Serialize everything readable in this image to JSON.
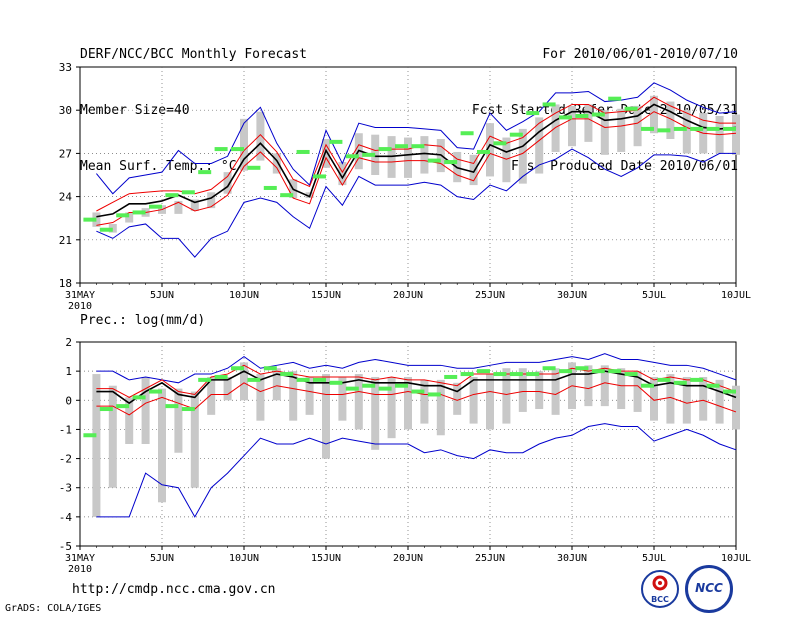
{
  "header": {
    "title": "DERF/NCC/BCC Monthly Forecast",
    "member_size": "Member Size=40",
    "variable1": "Mean Surf. Temp.: °C",
    "forecast_period": "For 2010/06/01-2010/07/10",
    "start_date": "Fcst Started Refer Date 2010/05/31",
    "produced_date": "Fcst Produced Date 2010/06/01"
  },
  "footer": {
    "url": "http://cmdp.ncc.cma.gov.cn",
    "credit": "GrADS: COLA/IGES",
    "logo1_label": "BCC",
    "logo2_label": "NCC"
  },
  "colors": {
    "envelope": "#0000cc",
    "spread": "#ee0000",
    "mean": "#000000",
    "box": "#c8c8c8",
    "clim": "#55ee55"
  },
  "chart_data": [
    {
      "type": "line",
      "title": "Mean Surf. Temp.: °C",
      "xlabel": "",
      "ylabel": "",
      "x_ticks": [
        "31MAY 2010",
        "5JUN",
        "10JUN",
        "15JUN",
        "20JUN",
        "25JUN",
        "30JUN",
        "5JUL",
        "10JUL"
      ],
      "ylim": [
        18,
        33
      ],
      "y_ticks": [
        18,
        21,
        24,
        27,
        30,
        33
      ],
      "days": [
        1,
        2,
        3,
        4,
        5,
        6,
        7,
        8,
        9,
        10,
        11,
        12,
        13,
        14,
        15,
        16,
        17,
        18,
        19,
        20,
        21,
        22,
        23,
        24,
        25,
        26,
        27,
        28,
        29,
        30,
        31,
        32,
        33,
        34,
        35,
        36,
        37,
        38,
        39,
        40
      ],
      "series": [
        {
          "name": "max",
          "values": [
            25.6,
            24.2,
            25.3,
            25.5,
            25.7,
            27.2,
            26.3,
            26.3,
            26.8,
            29.1,
            30.2,
            27.7,
            25.9,
            24.8,
            28.6,
            26.3,
            29.1,
            28.8,
            28.8,
            28.8,
            28.7,
            28.6,
            27.4,
            27.3,
            29.8,
            28.6,
            29.2,
            29.9,
            31.2,
            31.2,
            31.3,
            30.6,
            30.7,
            30.9,
            31.9,
            31.4,
            30.7,
            30.2,
            29.8,
            29.9
          ]
        },
        {
          "name": "upper",
          "values": [
            23.0,
            23.6,
            24.2,
            24.3,
            24.4,
            24.4,
            24.2,
            24.5,
            25.4,
            27.2,
            28.3,
            27.1,
            25.2,
            24.7,
            27.6,
            25.7,
            27.6,
            27.2,
            27.3,
            27.3,
            27.6,
            27.5,
            26.6,
            26.3,
            28.2,
            27.7,
            28.1,
            29.1,
            29.8,
            30.4,
            30.4,
            29.8,
            29.9,
            30.0,
            30.9,
            30.3,
            29.8,
            29.3,
            29.1,
            29.1
          ]
        },
        {
          "name": "mean",
          "values": [
            22.6,
            22.8,
            23.5,
            23.5,
            23.7,
            24.1,
            23.6,
            23.9,
            24.7,
            26.6,
            27.7,
            26.5,
            24.5,
            24.0,
            27.2,
            25.3,
            27.2,
            26.8,
            26.8,
            26.9,
            27.0,
            26.9,
            26.0,
            25.7,
            27.6,
            27.1,
            27.5,
            28.5,
            29.3,
            29.9,
            29.9,
            29.3,
            29.4,
            29.6,
            30.4,
            29.9,
            29.3,
            28.8,
            28.7,
            28.8
          ]
        },
        {
          "name": "lower",
          "values": [
            22.0,
            22.2,
            22.9,
            22.9,
            23.1,
            23.6,
            23.0,
            23.3,
            24.1,
            26.1,
            27.1,
            26.0,
            23.9,
            23.5,
            26.7,
            24.8,
            26.7,
            26.4,
            26.4,
            26.5,
            26.5,
            26.3,
            25.5,
            25.1,
            27.0,
            26.6,
            27.0,
            27.9,
            28.8,
            29.4,
            29.4,
            28.8,
            28.9,
            29.1,
            29.9,
            29.4,
            28.8,
            28.4,
            28.3,
            28.4
          ]
        },
        {
          "name": "min",
          "values": [
            21.6,
            21.1,
            21.9,
            22.1,
            21.1,
            21.1,
            19.8,
            21.1,
            21.6,
            23.6,
            23.9,
            23.6,
            22.6,
            21.8,
            24.7,
            23.4,
            25.4,
            24.8,
            24.8,
            24.8,
            25.0,
            24.8,
            24.0,
            23.8,
            24.8,
            24.4,
            25.4,
            26.2,
            26.6,
            27.3,
            26.7,
            25.9,
            25.4,
            26.0,
            26.9,
            26.9,
            26.8,
            26.4,
            27.0,
            27.0
          ]
        },
        {
          "name": "box_top",
          "values": [
            22.9,
            22.1,
            22.9,
            23.2,
            23.4,
            23.7,
            23.8,
            24.3,
            25.7,
            29.4,
            29.9,
            27.0,
            25.2,
            24.3,
            28.0,
            26.4,
            28.4,
            28.3,
            28.2,
            28.1,
            28.2,
            28.0,
            27.1,
            26.9,
            29.1,
            28.1,
            28.7,
            29.5,
            30.4,
            30.3,
            30.4,
            30.0,
            30.1,
            30.3,
            31.0,
            30.6,
            30.0,
            29.8,
            29.6,
            29.7
          ]
        },
        {
          "name": "box_bottom",
          "values": [
            21.9,
            21.5,
            22.2,
            22.6,
            22.8,
            22.8,
            23.0,
            23.2,
            24.2,
            25.8,
            26.5,
            25.6,
            23.9,
            23.9,
            26.0,
            24.8,
            25.9,
            25.5,
            25.3,
            25.3,
            25.6,
            25.7,
            25.0,
            24.8,
            25.4,
            25.0,
            24.9,
            25.6,
            27.1,
            27.5,
            27.8,
            26.9,
            27.1,
            27.5,
            28.4,
            28.0,
            27.0,
            27.0,
            27.0,
            26.9
          ]
        },
        {
          "name": "climatology",
          "values": [
            22.4,
            21.7,
            22.7,
            22.9,
            23.3,
            24.1,
            24.3,
            25.7,
            27.3,
            27.3,
            26.0,
            24.6,
            24.1,
            27.1,
            25.4,
            27.8,
            26.8,
            26.9,
            27.3,
            27.5,
            27.5,
            26.5,
            26.4,
            28.4,
            27.1,
            27.7,
            28.3,
            29.8,
            30.4,
            29.5,
            29.6,
            29.7,
            30.8,
            30.1,
            28.7,
            28.6,
            28.7,
            28.7,
            28.7,
            28.7
          ]
        }
      ]
    },
    {
      "type": "line",
      "title": "Prec.: log(mm/d)",
      "xlabel": "",
      "ylabel": "",
      "x_ticks": [
        "31MAY 2010",
        "5JUN",
        "10JUN",
        "15JUN",
        "20JUN",
        "25JUN",
        "30JUN",
        "5JUL",
        "10JUL"
      ],
      "ylim": [
        -5,
        2
      ],
      "y_ticks": [
        -5,
        -4,
        -3,
        -2,
        -1,
        0,
        1,
        2
      ],
      "days": [
        1,
        2,
        3,
        4,
        5,
        6,
        7,
        8,
        9,
        10,
        11,
        12,
        13,
        14,
        15,
        16,
        17,
        18,
        19,
        20,
        21,
        22,
        23,
        24,
        25,
        26,
        27,
        28,
        29,
        30,
        31,
        32,
        33,
        34,
        35,
        36,
        37,
        38,
        39,
        40
      ],
      "series": [
        {
          "name": "max",
          "values": [
            1.0,
            1.0,
            0.7,
            0.8,
            0.7,
            0.6,
            0.9,
            0.9,
            1.1,
            1.5,
            1.1,
            1.2,
            1.3,
            1.1,
            1.2,
            1.1,
            1.3,
            1.4,
            1.3,
            1.2,
            1.2,
            1.2,
            1.1,
            1.1,
            1.2,
            1.3,
            1.3,
            1.3,
            1.4,
            1.5,
            1.4,
            1.6,
            1.4,
            1.4,
            1.3,
            1.2,
            1.2,
            1.1,
            0.9,
            0.7
          ]
        },
        {
          "name": "upper",
          "values": [
            0.4,
            0.4,
            0.1,
            0.4,
            0.7,
            0.3,
            0.2,
            0.8,
            0.9,
            1.2,
            0.9,
            1.0,
            0.9,
            0.8,
            0.8,
            0.8,
            0.8,
            0.7,
            0.8,
            0.7,
            0.7,
            0.6,
            0.5,
            0.9,
            0.9,
            0.9,
            0.9,
            0.9,
            0.9,
            1.1,
            1.0,
            1.1,
            1.0,
            1.0,
            0.7,
            0.8,
            0.7,
            0.7,
            0.5,
            0.3
          ]
        },
        {
          "name": "mean",
          "values": [
            0.3,
            0.3,
            -0.1,
            0.3,
            0.6,
            0.2,
            0.1,
            0.7,
            0.7,
            1.0,
            0.7,
            0.9,
            0.8,
            0.6,
            0.6,
            0.6,
            0.7,
            0.6,
            0.6,
            0.6,
            0.5,
            0.5,
            0.3,
            0.7,
            0.7,
            0.7,
            0.7,
            0.7,
            0.7,
            0.9,
            0.9,
            1.0,
            0.9,
            0.8,
            0.5,
            0.6,
            0.5,
            0.5,
            0.3,
            0.1
          ]
        },
        {
          "name": "lower",
          "values": [
            -0.2,
            -0.2,
            -0.5,
            -0.1,
            0.1,
            -0.1,
            -0.3,
            0.2,
            0.2,
            0.6,
            0.3,
            0.5,
            0.4,
            0.3,
            0.2,
            0.2,
            0.3,
            0.2,
            0.2,
            0.3,
            0.2,
            0.2,
            0.0,
            0.2,
            0.3,
            0.2,
            0.3,
            0.3,
            0.2,
            0.5,
            0.4,
            0.6,
            0.5,
            0.5,
            0.0,
            0.1,
            -0.1,
            0.0,
            -0.2,
            -0.4
          ]
        },
        {
          "name": "min",
          "values": [
            -4.0,
            -4.0,
            -4.0,
            -2.5,
            -2.9,
            -3.0,
            -4.0,
            -3.0,
            -2.5,
            -1.9,
            -1.3,
            -1.5,
            -1.5,
            -1.3,
            -1.5,
            -1.3,
            -1.4,
            -1.5,
            -1.5,
            -1.5,
            -1.8,
            -1.7,
            -1.9,
            -2.0,
            -1.7,
            -1.8,
            -1.8,
            -1.5,
            -1.3,
            -1.2,
            -0.9,
            -0.8,
            -0.9,
            -0.9,
            -1.4,
            -1.2,
            -1.0,
            -1.2,
            -1.5,
            -1.7
          ]
        },
        {
          "name": "box_top",
          "values": [
            0.9,
            0.5,
            0.1,
            0.8,
            0.4,
            0.4,
            0.3,
            0.8,
            0.8,
            1.3,
            0.9,
            1.1,
            1.0,
            0.8,
            0.9,
            0.8,
            0.9,
            0.8,
            0.8,
            0.8,
            0.7,
            0.7,
            0.6,
            0.8,
            0.9,
            1.1,
            1.1,
            1.0,
            1.1,
            1.3,
            1.2,
            1.2,
            1.1,
            1.0,
            0.8,
            0.9,
            0.8,
            0.8,
            0.7,
            0.5
          ]
        },
        {
          "name": "box_bottom",
          "values": [
            -4.0,
            -3.0,
            -1.5,
            -1.5,
            -3.5,
            -1.8,
            -3.0,
            -0.5,
            0.0,
            0.0,
            -0.7,
            0.0,
            -0.7,
            -0.5,
            -2.0,
            -0.7,
            -1.0,
            -1.7,
            -1.3,
            -1.0,
            -0.8,
            -1.2,
            -0.5,
            -0.8,
            -1.0,
            -0.8,
            -0.4,
            -0.3,
            -0.5,
            -0.3,
            -0.2,
            -0.2,
            -0.3,
            -0.4,
            -0.7,
            -0.8,
            -0.8,
            -0.7,
            -0.8,
            -1.0
          ]
        },
        {
          "name": "climatology",
          "values": [
            -1.2,
            -0.3,
            -0.2,
            0.1,
            0.3,
            -0.2,
            -0.3,
            0.7,
            0.8,
            1.1,
            0.7,
            1.1,
            0.9,
            0.7,
            0.7,
            0.6,
            0.4,
            0.5,
            0.4,
            0.5,
            0.3,
            0.2,
            0.8,
            0.9,
            1.0,
            0.9,
            0.9,
            0.9,
            1.1,
            1.0,
            1.1,
            1.0,
            1.0,
            0.9,
            0.5,
            0.7,
            0.6,
            0.7,
            0.5,
            0.3
          ]
        }
      ]
    }
  ]
}
